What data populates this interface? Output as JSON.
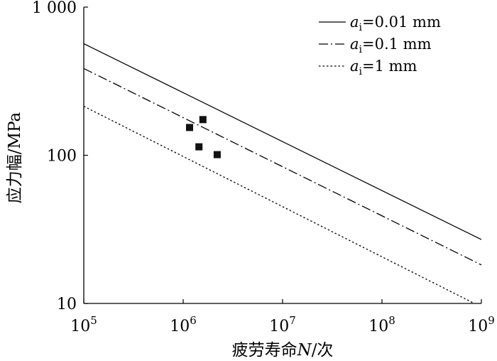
{
  "chart_data": {
    "type": "line",
    "xlabel": {
      "pre": "疲劳寿命",
      "var": "N",
      "post": "/次"
    },
    "ylabel": "应力幅/MPa",
    "xscale": "log",
    "yscale": "log",
    "xlim": [
      100000,
      1000000000
    ],
    "ylim": [
      10,
      1000
    ],
    "xticks": [
      100000,
      1000000,
      10000000,
      100000000,
      1000000000
    ],
    "xtick_labels": [
      {
        "base": "10",
        "exp": "5"
      },
      {
        "base": "10",
        "exp": "6"
      },
      {
        "base": "10",
        "exp": "7"
      },
      {
        "base": "10",
        "exp": "8"
      },
      {
        "base": "10",
        "exp": "9"
      }
    ],
    "yticks": [
      10,
      100,
      1000
    ],
    "ytick_labels": [
      "10",
      "100",
      "1 000"
    ],
    "grid": false,
    "legend": "top-right",
    "series": [
      {
        "label": {
          "var": "a",
          "sub": "i",
          "rest": "=0.01 mm"
        },
        "style": "solid",
        "x": [
          100000,
          1000000000
        ],
        "y": [
          566,
          27
        ]
      },
      {
        "label": {
          "var": "a",
          "sub": "i",
          "rest": "=0.1 mm"
        },
        "style": "dash-dot",
        "x": [
          100000,
          1000000000
        ],
        "y": [
          385,
          18.2
        ]
      },
      {
        "label": {
          "var": "a",
          "sub": "i",
          "rest": "=1 mm"
        },
        "style": "dotted",
        "x": [
          100000,
          850000000
        ],
        "y": [
          214,
          10
        ]
      }
    ],
    "points": {
      "type": "scatter",
      "marker": "square",
      "x": [
        1160000,
        1580000,
        1440000,
        2200000
      ],
      "y": [
        154,
        174,
        114,
        101
      ]
    }
  }
}
